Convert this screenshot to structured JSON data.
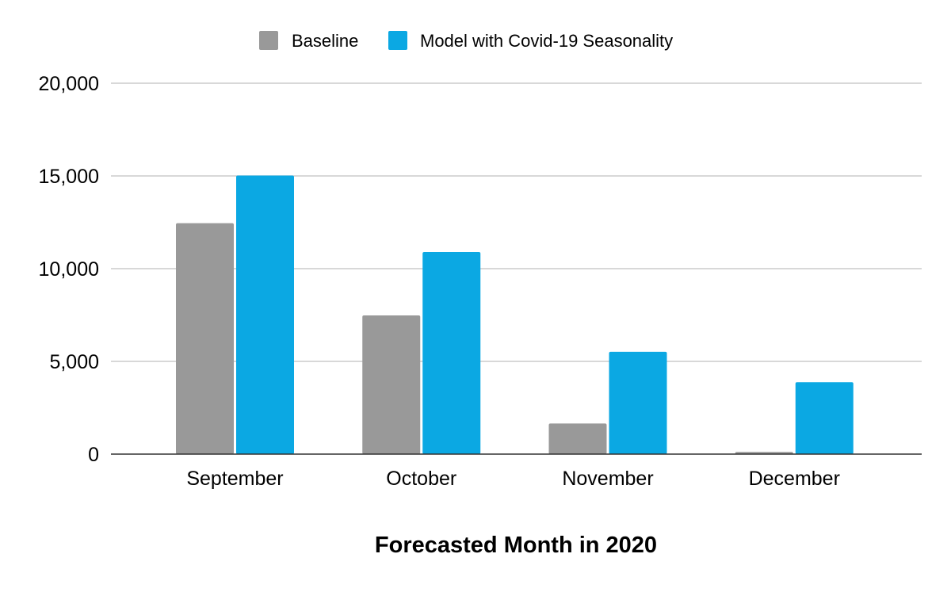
{
  "chart_data": {
    "type": "bar",
    "title": "",
    "xlabel": "Forecasted Month in 2020",
    "ylabel": "",
    "categories": [
      "September",
      "October",
      "November",
      "December"
    ],
    "series": [
      {
        "name": "Baseline",
        "color": "#999999",
        "values": [
          12450,
          7480,
          1650,
          120
        ]
      },
      {
        "name": "Model with Covid-19 Seasonality",
        "color": "#0ba8e3",
        "values": [
          15020,
          10900,
          5520,
          3880
        ]
      }
    ],
    "ylim": [
      0,
      20000
    ],
    "yticks": [
      0,
      5000,
      10000,
      15000,
      20000
    ],
    "ytick_labels": [
      "0",
      "5,000",
      "10,000",
      "15,000",
      "20,000"
    ],
    "grid": true,
    "legend_position": "top-center"
  }
}
